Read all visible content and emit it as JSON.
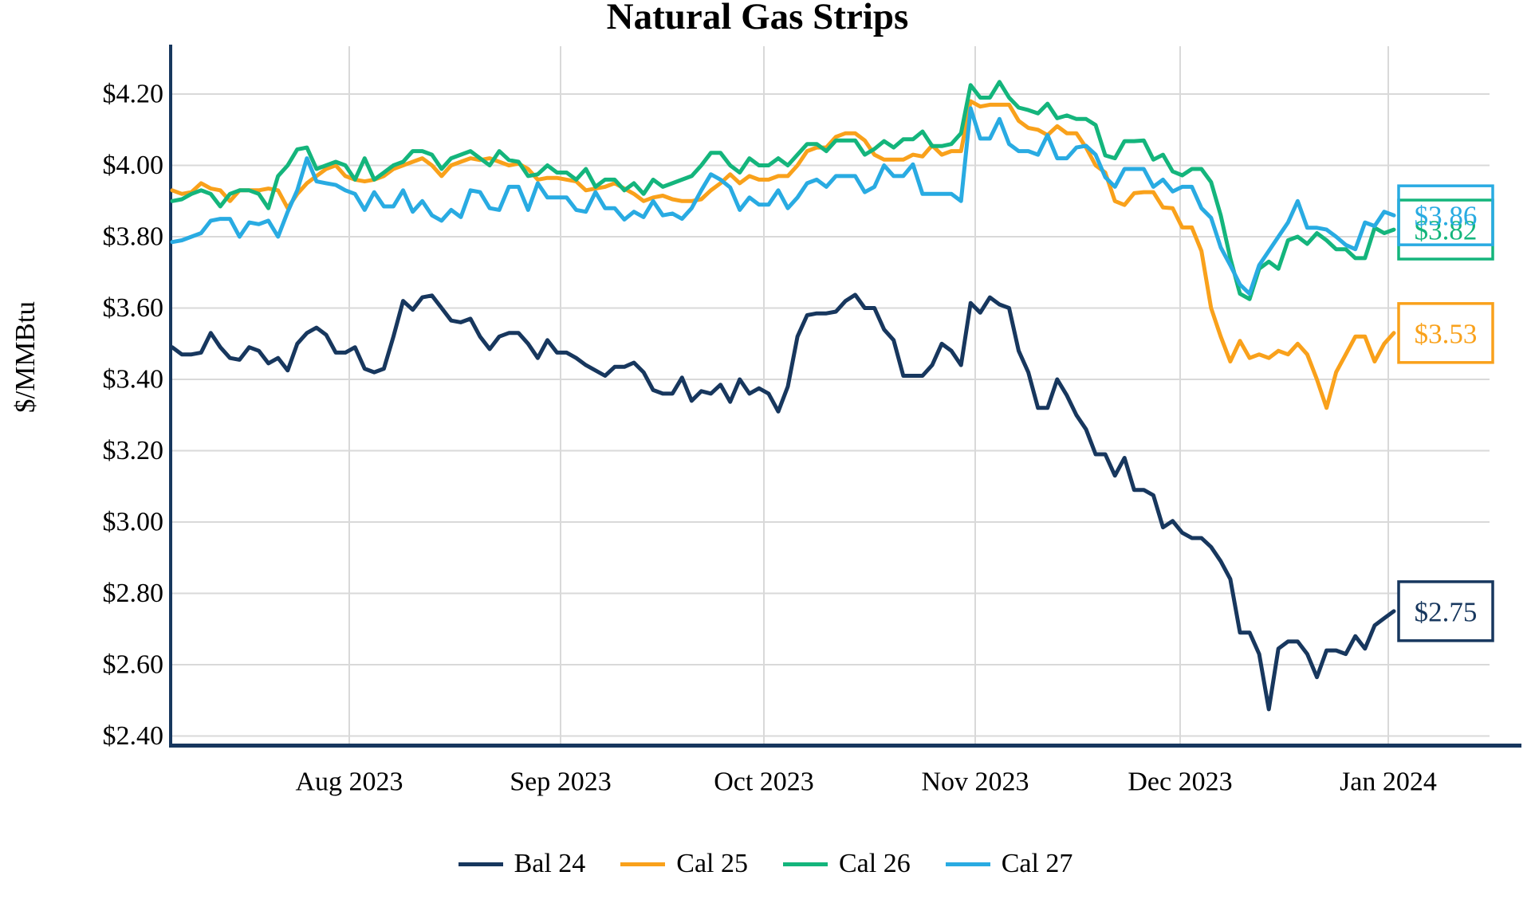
{
  "title": "Natural Gas Strips",
  "y_axis_title": "$/MMBtu",
  "chart_data": {
    "type": "line",
    "title": "Natural Gas Strips",
    "ylabel": "$/MMBtu",
    "xlabel": "",
    "grid": true,
    "legend_position": "bottom",
    "ylim": [
      2.4,
      4.3
    ],
    "yticks": [
      4.2,
      4.0,
      3.8,
      3.6,
      3.4,
      3.2,
      3.0,
      2.8,
      2.6,
      2.4
    ],
    "ytick_labels": [
      "$4.20",
      "$4.00",
      "$3.80",
      "$3.60",
      "$3.40",
      "$3.20",
      "$3.00",
      "$2.80",
      "$2.60",
      "$2.40"
    ],
    "xtick_labels": [
      "Aug 2023",
      "Sep 2023",
      "Oct 2023",
      "Nov 2023",
      "Dec 2023",
      "Jan 2024"
    ],
    "colors": {
      "grid": "#D9D9D9",
      "axis": "#17375E",
      "background": "#FFFFFF"
    },
    "series": [
      {
        "name": "Bal 24",
        "color": "#17375E",
        "end_label": "$2.75",
        "values": [
          3.49,
          3.47,
          3.47,
          3.475,
          3.53,
          3.49,
          3.46,
          3.455,
          3.49,
          3.48,
          3.445,
          3.46,
          3.425,
          3.5,
          3.53,
          3.545,
          3.525,
          3.475,
          3.475,
          3.49,
          3.43,
          3.42,
          3.43,
          3.52,
          3.62,
          3.595,
          3.63,
          3.635,
          3.6,
          3.565,
          3.56,
          3.57,
          3.52,
          3.485,
          3.52,
          3.53,
          3.53,
          3.5,
          3.46,
          3.51,
          3.475,
          3.475,
          3.46,
          3.44,
          3.425,
          3.41,
          3.435,
          3.435,
          3.447,
          3.42,
          3.37,
          3.36,
          3.36,
          3.405,
          3.34,
          3.367,
          3.36,
          3.385,
          3.337,
          3.4,
          3.36,
          3.375,
          3.36,
          3.31,
          3.38,
          3.52,
          3.58,
          3.585,
          3.585,
          3.59,
          3.62,
          3.637,
          3.6,
          3.6,
          3.54,
          3.51,
          3.41,
          3.41,
          3.41,
          3.44,
          3.5,
          3.48,
          3.44,
          3.614,
          3.587,
          3.63,
          3.61,
          3.6,
          3.48,
          3.42,
          3.32,
          3.32,
          3.4,
          3.355,
          3.3,
          3.26,
          3.19,
          3.19,
          3.13,
          3.18,
          3.09,
          3.09,
          3.075,
          2.985,
          3.003,
          2.97,
          2.955,
          2.955,
          2.93,
          2.89,
          2.84,
          2.69,
          2.69,
          2.63,
          2.475,
          2.645,
          2.665,
          2.665,
          2.63,
          2.565,
          2.64,
          2.64,
          2.63,
          2.68,
          2.645,
          2.71,
          2.73,
          2.75
        ]
      },
      {
        "name": "Cal 25",
        "color": "#F9A11B",
        "end_label": "$3.53",
        "values": [
          3.93,
          3.92,
          3.925,
          3.95,
          3.935,
          3.93,
          3.9,
          3.93,
          3.93,
          3.93,
          3.935,
          3.93,
          3.88,
          3.92,
          3.95,
          3.97,
          3.99,
          4.0,
          3.97,
          3.96,
          3.955,
          3.96,
          3.97,
          3.99,
          4.0,
          4.01,
          4.02,
          4.0,
          3.97,
          4.0,
          4.01,
          4.02,
          4.015,
          4.02,
          4.01,
          4.0,
          4.005,
          3.99,
          3.96,
          3.965,
          3.965,
          3.96,
          3.955,
          3.93,
          3.935,
          3.94,
          3.95,
          3.935,
          3.92,
          3.9,
          3.91,
          3.915,
          3.905,
          3.9,
          3.9,
          3.905,
          3.93,
          3.95,
          3.975,
          3.95,
          3.97,
          3.96,
          3.96,
          3.97,
          3.97,
          4.0,
          4.04,
          4.05,
          4.05,
          4.08,
          4.09,
          4.09,
          4.07,
          4.03,
          4.016,
          4.016,
          4.016,
          4.03,
          4.025,
          4.056,
          4.03,
          4.04,
          4.04,
          4.18,
          4.165,
          4.17,
          4.17,
          4.17,
          4.125,
          4.105,
          4.1,
          4.085,
          4.11,
          4.09,
          4.09,
          4.05,
          4.0,
          3.98,
          3.9,
          3.889,
          3.922,
          3.925,
          3.925,
          3.882,
          3.88,
          3.826,
          3.826,
          3.76,
          3.6,
          3.52,
          3.45,
          3.508,
          3.46,
          3.47,
          3.46,
          3.48,
          3.47,
          3.5,
          3.47,
          3.4,
          3.32,
          3.42,
          3.47,
          3.52,
          3.52,
          3.45,
          3.5,
          3.53
        ]
      },
      {
        "name": "Cal 26",
        "color": "#14B57C",
        "end_label": "$3.82",
        "values": [
          3.9,
          3.905,
          3.92,
          3.93,
          3.92,
          3.885,
          3.92,
          3.93,
          3.93,
          3.92,
          3.88,
          3.97,
          4.0,
          4.045,
          4.05,
          3.99,
          4.0,
          4.01,
          4.0,
          3.96,
          4.02,
          3.96,
          3.98,
          4.0,
          4.01,
          4.04,
          4.04,
          4.03,
          3.99,
          4.02,
          4.03,
          4.04,
          4.02,
          4.0,
          4.04,
          4.015,
          4.01,
          3.97,
          3.975,
          4.0,
          3.98,
          3.98,
          3.96,
          3.99,
          3.94,
          3.96,
          3.96,
          3.93,
          3.95,
          3.92,
          3.96,
          3.94,
          3.95,
          3.96,
          3.97,
          4.0,
          4.035,
          4.035,
          4.0,
          3.98,
          4.02,
          4.0,
          4.0,
          4.02,
          4.0,
          4.03,
          4.06,
          4.06,
          4.04,
          4.07,
          4.07,
          4.07,
          4.03,
          4.046,
          4.068,
          4.05,
          4.073,
          4.073,
          4.095,
          4.054,
          4.054,
          4.06,
          4.09,
          4.225,
          4.19,
          4.19,
          4.234,
          4.19,
          4.162,
          4.155,
          4.146,
          4.173,
          4.132,
          4.14,
          4.13,
          4.13,
          4.113,
          4.028,
          4.02,
          4.068,
          4.068,
          4.07,
          4.016,
          4.03,
          3.983,
          3.972,
          3.99,
          3.99,
          3.953,
          3.86,
          3.74,
          3.64,
          3.625,
          3.71,
          3.73,
          3.71,
          3.79,
          3.8,
          3.78,
          3.81,
          3.79,
          3.765,
          3.765,
          3.74,
          3.74,
          3.825,
          3.81,
          3.82
        ]
      },
      {
        "name": "Cal 27",
        "color": "#29ABE2",
        "end_label": "$3.86",
        "values": [
          3.785,
          3.79,
          3.8,
          3.81,
          3.845,
          3.85,
          3.85,
          3.8,
          3.84,
          3.835,
          3.845,
          3.8,
          3.87,
          3.93,
          4.02,
          3.955,
          3.95,
          3.945,
          3.93,
          3.92,
          3.875,
          3.925,
          3.885,
          3.885,
          3.93,
          3.87,
          3.9,
          3.86,
          3.845,
          3.875,
          3.855,
          3.93,
          3.925,
          3.88,
          3.875,
          3.94,
          3.94,
          3.875,
          3.95,
          3.91,
          3.91,
          3.91,
          3.875,
          3.87,
          3.925,
          3.88,
          3.88,
          3.848,
          3.87,
          3.855,
          3.9,
          3.86,
          3.865,
          3.85,
          3.88,
          3.93,
          3.975,
          3.96,
          3.938,
          3.875,
          3.91,
          3.89,
          3.89,
          3.93,
          3.88,
          3.91,
          3.95,
          3.96,
          3.94,
          3.97,
          3.97,
          3.97,
          3.925,
          3.94,
          4.0,
          3.97,
          3.97,
          4.003,
          3.92,
          3.92,
          3.92,
          3.92,
          3.9,
          4.16,
          4.075,
          4.075,
          4.13,
          4.06,
          4.04,
          4.04,
          4.03,
          4.085,
          4.02,
          4.02,
          4.05,
          4.055,
          4.03,
          3.967,
          3.94,
          3.99,
          3.99,
          3.99,
          3.94,
          3.96,
          3.927,
          3.94,
          3.94,
          3.88,
          3.853,
          3.77,
          3.72,
          3.666,
          3.64,
          3.72,
          3.76,
          3.8,
          3.84,
          3.9,
          3.825,
          3.825,
          3.82,
          3.8,
          3.777,
          3.765,
          3.84,
          3.83,
          3.87,
          3.86
        ]
      }
    ]
  }
}
